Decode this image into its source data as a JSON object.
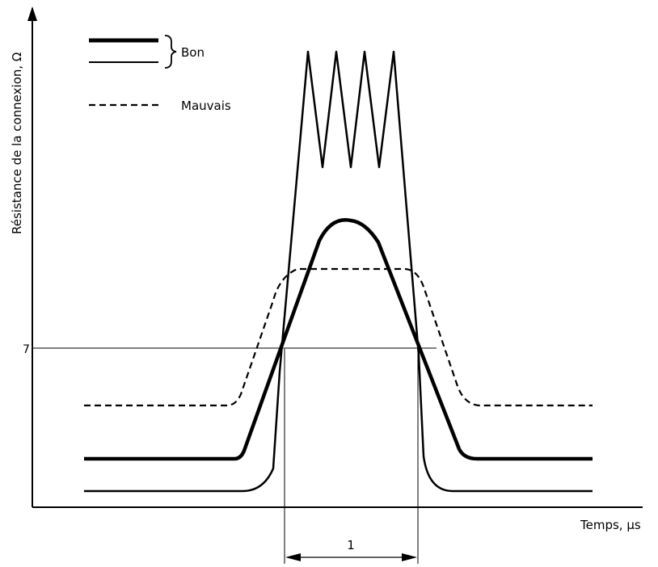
{
  "chart_data": {
    "type": "line",
    "title": "",
    "xlabel": "Temps, µs",
    "ylabel": "Résistance de la connexion, Ω",
    "grid": false,
    "legend": {
      "placement": "top-left",
      "group_label": "Bon",
      "entries": [
        {
          "label": "Bon",
          "style": "solid-thick"
        },
        {
          "label": "Bon",
          "style": "solid-thin"
        },
        {
          "label": "Mauvais",
          "style": "dashed"
        }
      ]
    },
    "reference": {
      "y_value": 7,
      "y_label": "7",
      "interval_label": "1"
    },
    "series": [
      {
        "name": "Bon",
        "style": "solid-thick"
      },
      {
        "name": "Bon",
        "style": "solid-thin"
      },
      {
        "name": "Mauvais",
        "style": "dashed"
      }
    ]
  }
}
